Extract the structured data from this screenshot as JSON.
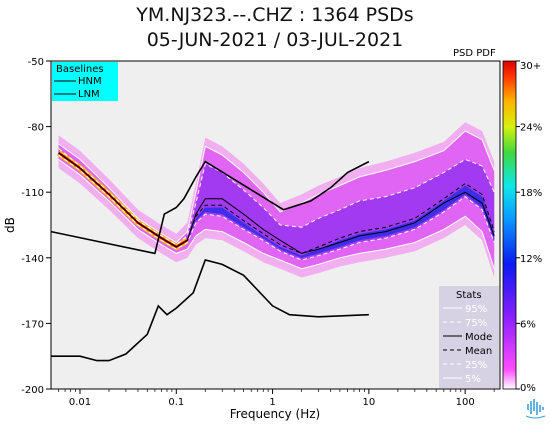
{
  "title_line1": "YM.NJ323.--.CHZ : 1364 PSDs",
  "title_line2": "05-JUN-2021 / 03-JUL-2021",
  "colorbar_title": "PSD PDF",
  "logo_name": "ppsd-logo-icon",
  "colors": {
    "plot_bg": "#efefef",
    "baseline_box": "#00ffff",
    "stats_box": "#d7d1e4",
    "curves": "#000000",
    "stat_lines_light": "#ffffff"
  },
  "chart_data": {
    "type": "heatmap",
    "title": "YM.NJ323.--.CHZ : 1364 PSDs",
    "subtitle": "05-JUN-2021 / 03-JUL-2021",
    "xlabel": "Frequency (Hz)",
    "ylabel": "dB",
    "xscale": "log",
    "xlim": [
      0.005,
      230
    ],
    "ylim": [
      -200,
      -50
    ],
    "x_ticks": [
      {
        "value": 0.01,
        "label": "0.01"
      },
      {
        "value": 0.1,
        "label": "0.1"
      },
      {
        "value": 1,
        "label": "1"
      },
      {
        "value": 10,
        "label": "10"
      },
      {
        "value": 100,
        "label": "100"
      }
    ],
    "y_ticks": [
      {
        "value": -50,
        "label": "-50"
      },
      {
        "value": -80,
        "label": "-80"
      },
      {
        "value": -110,
        "label": "-110"
      },
      {
        "value": -140,
        "label": "-140"
      },
      {
        "value": -170,
        "label": "-170"
      },
      {
        "value": -200,
        "label": "-200"
      }
    ],
    "colorbar": {
      "label": "PSD PDF",
      "range": [
        0,
        30
      ],
      "ticks": [
        "30+",
        "24%",
        "18%",
        "12%",
        "6%",
        "0%"
      ]
    },
    "baselines_legend": {
      "title": "Baselines",
      "entries": [
        "HNM",
        "LNM"
      ],
      "placement": "top-left"
    },
    "stats_legend": {
      "title": "Stats",
      "entries": [
        "95%",
        "75%",
        "Mode",
        "Mean",
        "25%",
        "5%"
      ],
      "placement": "bottom-right"
    },
    "hnm": {
      "x": [
        0.005,
        0.06,
        0.075,
        0.1,
        0.12,
        0.16,
        0.2,
        1.3,
        2.5,
        4,
        6,
        10
      ],
      "y": [
        -128,
        -138,
        -120,
        -117,
        -113,
        -103,
        -96,
        -118,
        -114,
        -108,
        -101,
        -96
      ]
    },
    "lnm": {
      "x": [
        0.005,
        0.01,
        0.015,
        0.02,
        0.03,
        0.05,
        0.065,
        0.08,
        0.1,
        0.15,
        0.2,
        0.3,
        0.5,
        1,
        1.5,
        3,
        10
      ],
      "y": [
        -185,
        -185,
        -187,
        -187,
        -184,
        -175,
        -162,
        -166,
        -163,
        -156,
        -141,
        -143,
        -148,
        -162,
        -166,
        -167,
        -166
      ]
    },
    "stats": {
      "x": [
        0.006,
        0.01,
        0.02,
        0.04,
        0.07,
        0.1,
        0.13,
        0.16,
        0.2,
        0.3,
        0.5,
        0.8,
        1.2,
        2,
        3,
        5,
        8,
        15,
        30,
        60,
        100,
        150,
        200
      ],
      "p95": [
        -88,
        -95,
        -108,
        -122,
        -129,
        -133,
        -128,
        -110,
        -89,
        -93,
        -101,
        -110,
        -119,
        -115,
        -111,
        -107,
        -103,
        -100,
        -96,
        -91,
        -82,
        -86,
        -100
      ],
      "p75": [
        -90,
        -98,
        -110,
        -123,
        -130,
        -134,
        -130,
        -115,
        -97,
        -101,
        -109,
        -117,
        -125,
        -126,
        -122,
        -118,
        -114,
        -112,
        -108,
        -101,
        -95,
        -98,
        -110
      ],
      "mode": [
        -92,
        -99,
        -111,
        -124,
        -131,
        -135,
        -132,
        -120,
        -113,
        -113,
        -120,
        -127,
        -132,
        -138,
        -136,
        -133,
        -130,
        -128,
        -124,
        -115,
        -110,
        -115,
        -130
      ],
      "mean": [
        -92,
        -99,
        -111,
        -124,
        -131,
        -135,
        -132,
        -121,
        -116,
        -116,
        -123,
        -129,
        -134,
        -138,
        -135,
        -131,
        -128,
        -126,
        -122,
        -113,
        -106,
        -111,
        -128
      ],
      "p25": [
        -93,
        -100,
        -112,
        -125,
        -132,
        -136,
        -133,
        -124,
        -120,
        -121,
        -127,
        -132,
        -137,
        -141,
        -139,
        -136,
        -133,
        -131,
        -127,
        -119,
        -112,
        -118,
        -133
      ],
      "p5": [
        -95,
        -102,
        -114,
        -127,
        -134,
        -138,
        -136,
        -130,
        -127,
        -128,
        -133,
        -138,
        -141,
        -145,
        -143,
        -140,
        -138,
        -136,
        -133,
        -127,
        -121,
        -128,
        -145
      ]
    }
  }
}
